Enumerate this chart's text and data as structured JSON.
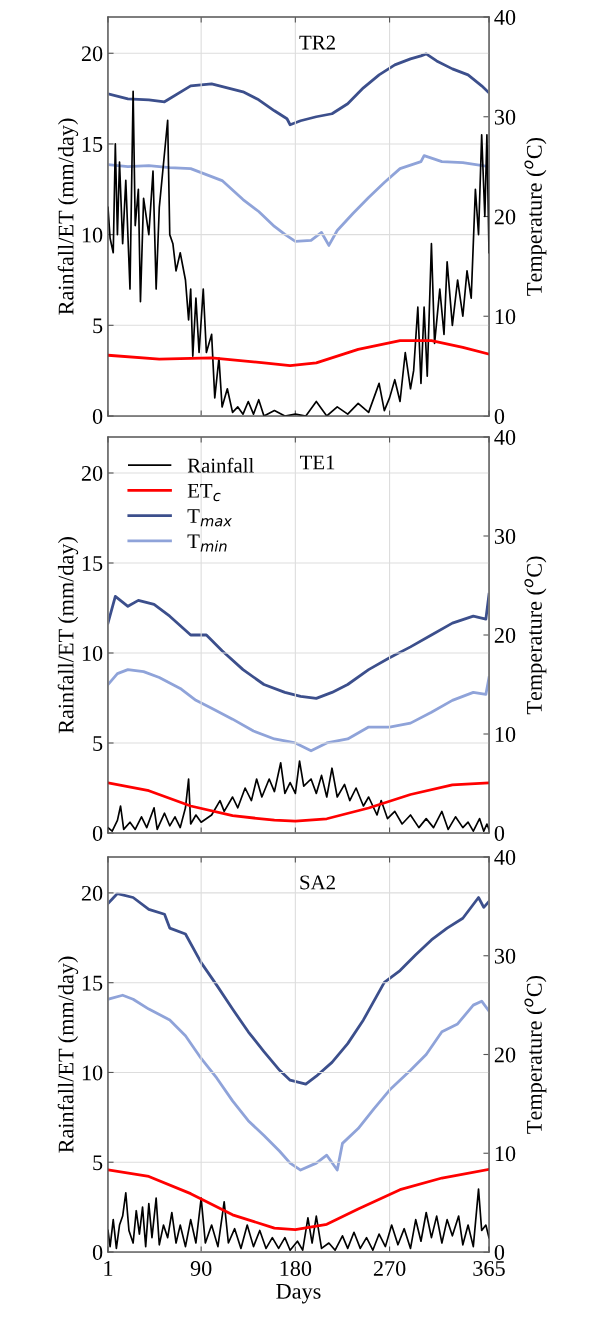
{
  "chart_data": [
    {
      "type": "line",
      "title": "TR2",
      "ylabel": "Rainfall/ET (mm/day)",
      "y2label": "Temperature ($^{o}$C)",
      "xlim": [
        1,
        365
      ],
      "xticks": [
        1,
        90,
        180,
        270,
        365
      ],
      "ylim": [
        0,
        22
      ],
      "yticks": [
        0,
        5,
        10,
        15,
        20
      ],
      "y2lim": [
        0,
        40
      ],
      "y2ticks": [
        0,
        10,
        20,
        30,
        40
      ],
      "grid": true,
      "legend": false,
      "tick_labels": "y",
      "line_style": "solid",
      "marker": "none",
      "series": [
        {
          "color": "#000000",
          "x": [
            1,
            3,
            6,
            8,
            10,
            12,
            15,
            18,
            22,
            25,
            27,
            30,
            32,
            35,
            40,
            44,
            47,
            50,
            55,
            58,
            60,
            63,
            66,
            70,
            75,
            78,
            80,
            82,
            85,
            88,
            92,
            95,
            100,
            103,
            107,
            110,
            115,
            120,
            125,
            130,
            135,
            140,
            145,
            150,
            160,
            170,
            180,
            190,
            200,
            210,
            220,
            230,
            240,
            250,
            260,
            265,
            270,
            275,
            280,
            285,
            290,
            293,
            297,
            300,
            303,
            306,
            310,
            313,
            318,
            322,
            325,
            330,
            335,
            340,
            344,
            348,
            352,
            355,
            358,
            361,
            363,
            365
          ],
          "values": [
            11.5,
            9.8,
            9.0,
            15.0,
            10,
            14,
            9.5,
            13,
            7,
            17.9,
            10.5,
            12.5,
            6.3,
            12,
            10,
            13.5,
            7,
            11.5,
            14.5,
            16.3,
            10,
            9.5,
            8,
            9,
            7.5,
            5.3,
            7,
            3.3,
            6.5,
            3.5,
            7.0,
            3.5,
            4.5,
            1.0,
            3.2,
            0.5,
            1.5,
            0.2,
            0.5,
            0.1,
            0.8,
            0.1,
            0.9,
            0.0,
            0.3,
            0.0,
            0.1,
            0.0,
            0.8,
            0.0,
            0.5,
            0.1,
            0.7,
            0.2,
            1.8,
            0.3,
            1.0,
            2.0,
            0.8,
            3.5,
            1.5,
            2.5,
            6.0,
            1.8,
            6.0,
            2.2,
            9.5,
            4.0,
            7.0,
            4.5,
            8.5,
            5.0,
            7.5,
            5.5,
            8.0,
            6.5,
            12.5,
            10.0,
            15.5,
            11,
            15.5,
            9.0
          ]
        },
        {
          "color": "#ff0000",
          "x": [
            1,
            50,
            100,
            150,
            175,
            200,
            240,
            280,
            310,
            340,
            365
          ],
          "values": [
            3.35,
            3.14,
            3.2,
            2.93,
            2.78,
            2.93,
            3.67,
            4.16,
            4.16,
            3.78,
            3.41
          ]
        },
        {
          "color": "#3c4f8c",
          "axis": "y2",
          "x": [
            1,
            20,
            40,
            55,
            80,
            100,
            115,
            130,
            145,
            160,
            172,
            175,
            185,
            200,
            215,
            230,
            245,
            260,
            275,
            290,
            300,
            305,
            315,
            330,
            345,
            358,
            365
          ],
          "values": [
            32.3,
            31.8,
            31.7,
            31.5,
            33.1,
            33.3,
            32.9,
            32.5,
            31.7,
            30.6,
            29.8,
            29.2,
            29.6,
            30.0,
            30.3,
            31.3,
            32.9,
            34.2,
            35.2,
            35.8,
            36.1,
            36.3,
            35.6,
            34.8,
            34.2,
            33.1,
            32.4
          ]
        },
        {
          "color": "#8fa3d9",
          "axis": "y2",
          "x": [
            1,
            20,
            40,
            60,
            80,
            100,
            110,
            130,
            145,
            160,
            170,
            180,
            195,
            205,
            212,
            220,
            235,
            250,
            265,
            280,
            300,
            303,
            320,
            340,
            365
          ],
          "values": [
            25.2,
            25.0,
            25.1,
            24.9,
            24.8,
            24.0,
            23.6,
            21.7,
            20.5,
            19.0,
            18.2,
            17.5,
            17.6,
            18.4,
            17.1,
            18.6,
            20.3,
            21.9,
            23.4,
            24.8,
            25.5,
            26.1,
            25.5,
            25.4,
            25.0
          ]
        }
      ]
    },
    {
      "type": "line",
      "title": "TE1",
      "ylabel": "Rainfall/ET (mm/day)",
      "y2label": "Temperature ($^{o}$C)",
      "xlim": [
        1,
        365
      ],
      "xticks": [
        1,
        90,
        180,
        270,
        365
      ],
      "ylim": [
        0,
        22
      ],
      "yticks": [
        0,
        5,
        10,
        15,
        20
      ],
      "y2lim": [
        0,
        40
      ],
      "y2ticks": [
        0,
        10,
        20,
        30,
        40
      ],
      "grid": true,
      "legend": "top left",
      "tick_labels": "y",
      "line_style": "solid",
      "marker": "none",
      "series": [
        {
          "name": "Rainfall",
          "color": "#000000",
          "x": [
            1,
            5,
            10,
            13,
            16,
            22,
            27,
            33,
            38,
            45,
            48,
            55,
            60,
            65,
            70,
            75,
            78,
            80,
            85,
            90,
            100,
            108,
            112,
            120,
            125,
            132,
            138,
            143,
            148,
            155,
            160,
            166,
            170,
            175,
            180,
            184,
            188,
            195,
            200,
            205,
            210,
            215,
            220,
            227,
            232,
            238,
            245,
            250,
            258,
            262,
            268,
            275,
            282,
            290,
            298,
            305,
            312,
            320,
            326,
            333,
            340,
            345,
            350,
            356,
            360,
            363,
            365
          ],
          "values": [
            0.3,
            0.1,
            0.7,
            1.5,
            0.2,
            0.6,
            0.2,
            0.9,
            0.3,
            1.4,
            0.2,
            1.1,
            0.4,
            0.9,
            0.3,
            1.4,
            3.0,
            0.5,
            1.0,
            0.6,
            1.0,
            1.8,
            1.2,
            2.0,
            1.4,
            2.5,
            1.8,
            3.0,
            2.0,
            3.0,
            2.3,
            3.9,
            2.2,
            2.8,
            2.2,
            4.0,
            2.6,
            3.0,
            2.2,
            3.2,
            2.0,
            3.6,
            2.0,
            2.7,
            1.8,
            2.5,
            1.5,
            2.0,
            1.0,
            1.8,
            0.8,
            1.2,
            0.5,
            1.0,
            0.3,
            0.8,
            0.3,
            1.2,
            0.2,
            0.9,
            0.3,
            0.6,
            0.1,
            0.8,
            0.1,
            0.5,
            0.2
          ]
        },
        {
          "name": "ET$_{c}$",
          "color": "#ff0000",
          "x": [
            1,
            40,
            80,
            120,
            160,
            180,
            210,
            250,
            290,
            330,
            365
          ],
          "values": [
            2.78,
            2.35,
            1.5,
            0.96,
            0.71,
            0.66,
            0.79,
            1.39,
            2.14,
            2.67,
            2.78
          ]
        },
        {
          "name": "T$_{max}$",
          "color": "#3c4f8c",
          "axis": "y2",
          "x": [
            1,
            8,
            20,
            30,
            45,
            60,
            80,
            95,
            110,
            130,
            150,
            170,
            185,
            200,
            215,
            230,
            250,
            270,
            290,
            310,
            330,
            350,
            362,
            365
          ],
          "values": [
            21.2,
            23.9,
            22.9,
            23.5,
            23.1,
            21.9,
            20.0,
            20.0,
            18.4,
            16.5,
            15.0,
            14.2,
            13.8,
            13.6,
            14.2,
            15.0,
            16.5,
            17.7,
            18.8,
            20.0,
            21.2,
            21.9,
            21.6,
            24.1
          ]
        },
        {
          "name": "T$_{min}$",
          "color": "#8fa3d9",
          "axis": "y2",
          "x": [
            1,
            10,
            20,
            35,
            50,
            70,
            85,
            100,
            120,
            140,
            160,
            180,
            195,
            210,
            230,
            250,
            270,
            290,
            310,
            330,
            350,
            362,
            365
          ],
          "values": [
            15.0,
            16.1,
            16.5,
            16.3,
            15.7,
            14.6,
            13.4,
            12.6,
            11.5,
            10.3,
            9.5,
            9.1,
            8.3,
            9.1,
            9.5,
            10.7,
            10.7,
            11.1,
            12.2,
            13.4,
            14.2,
            14.0,
            15.7
          ]
        }
      ]
    },
    {
      "type": "line",
      "title": "SA2",
      "xlabel": "Days",
      "ylabel": "Rainfall/ET (mm/day)",
      "y2label": "Temperature ($^{o}$C)",
      "xlim": [
        1,
        365
      ],
      "xticks": [
        1,
        90,
        180,
        270,
        365
      ],
      "ylim": [
        0,
        22
      ],
      "yticks": [
        0,
        5,
        10,
        15,
        20
      ],
      "y2lim": [
        0,
        40
      ],
      "y2ticks": [
        0,
        10,
        20,
        30,
        40
      ],
      "grid": true,
      "legend": false,
      "line_style": "solid",
      "marker": "none",
      "series": [
        {
          "color": "#000000",
          "x": [
            1,
            3,
            6,
            9,
            12,
            15,
            18,
            21,
            25,
            28,
            31,
            34,
            37,
            40,
            43,
            47,
            50,
            54,
            58,
            62,
            66,
            70,
            75,
            80,
            85,
            90,
            94,
            100,
            106,
            112,
            116,
            122,
            128,
            134,
            140,
            146,
            152,
            158,
            164,
            170,
            175,
            182,
            187,
            192,
            196,
            200,
            205,
            212,
            218,
            225,
            230,
            236,
            242,
            248,
            254,
            260,
            266,
            272,
            278,
            284,
            290,
            295,
            300,
            305,
            310,
            315,
            320,
            325,
            330,
            336,
            340,
            345,
            350,
            355,
            358,
            362,
            365
          ],
          "values": [
            1.2,
            0.3,
            1.8,
            0.2,
            1.5,
            2.0,
            3.3,
            1.2,
            0.5,
            2.3,
            1.0,
            2.5,
            0.3,
            2.7,
            0.8,
            3.0,
            0.4,
            1.5,
            0.8,
            2.2,
            0.5,
            1.5,
            0.3,
            1.8,
            0.5,
            3.0,
            0.5,
            1.5,
            0.3,
            2.8,
            0.5,
            1.3,
            0.2,
            1.5,
            0.3,
            1.2,
            0.2,
            0.8,
            0.2,
            0.8,
            0.1,
            0.6,
            0.1,
            1.9,
            0.5,
            2.0,
            0.2,
            0.5,
            0.1,
            0.9,
            0.2,
            1.1,
            0.2,
            0.8,
            0.1,
            1.0,
            0.3,
            1.5,
            0.4,
            1.3,
            0.2,
            1.8,
            0.6,
            2.2,
            0.8,
            2.0,
            0.5,
            1.8,
            0.9,
            2.0,
            0.4,
            1.5,
            0.3,
            3.5,
            1.2,
            1.5,
            0.8
          ]
        },
        {
          "color": "#ff0000",
          "x": [
            1,
            40,
            80,
            120,
            160,
            180,
            210,
            240,
            280,
            320,
            365
          ],
          "values": [
            4.58,
            4.21,
            3.25,
            2.07,
            1.33,
            1.24,
            1.54,
            2.4,
            3.47,
            4.12,
            4.6
          ]
        },
        {
          "color": "#3c4f8c",
          "axis": "y2",
          "x": [
            1,
            10,
            25,
            40,
            55,
            60,
            75,
            90,
            105,
            120,
            135,
            150,
            165,
            175,
            190,
            200,
            215,
            230,
            245,
            265,
            280,
            295,
            310,
            325,
            340,
            355,
            360,
            365
          ],
          "values": [
            35.3,
            36.3,
            35.9,
            34.7,
            34.2,
            32.8,
            32.2,
            29.3,
            27.0,
            24.6,
            22.3,
            20.3,
            18.4,
            17.4,
            17.0,
            17.8,
            19.2,
            21.1,
            23.5,
            27.3,
            28.5,
            30.1,
            31.6,
            32.8,
            33.8,
            35.9,
            34.9,
            35.5
          ]
        },
        {
          "color": "#8fa3d9",
          "axis": "y2",
          "x": [
            1,
            15,
            25,
            40,
            60,
            75,
            90,
            105,
            120,
            135,
            150,
            165,
            175,
            185,
            200,
            210,
            220,
            225,
            240,
            255,
            270,
            290,
            305,
            320,
            335,
            350,
            358,
            365
          ],
          "values": [
            25.6,
            26.0,
            25.6,
            24.6,
            23.5,
            21.9,
            19.6,
            17.6,
            15.3,
            13.3,
            11.8,
            10.2,
            9.0,
            8.3,
            9.0,
            9.8,
            8.3,
            11.0,
            12.5,
            14.5,
            16.4,
            18.4,
            20.0,
            22.3,
            23.1,
            25.0,
            25.4,
            24.4
          ]
        }
      ]
    }
  ]
}
